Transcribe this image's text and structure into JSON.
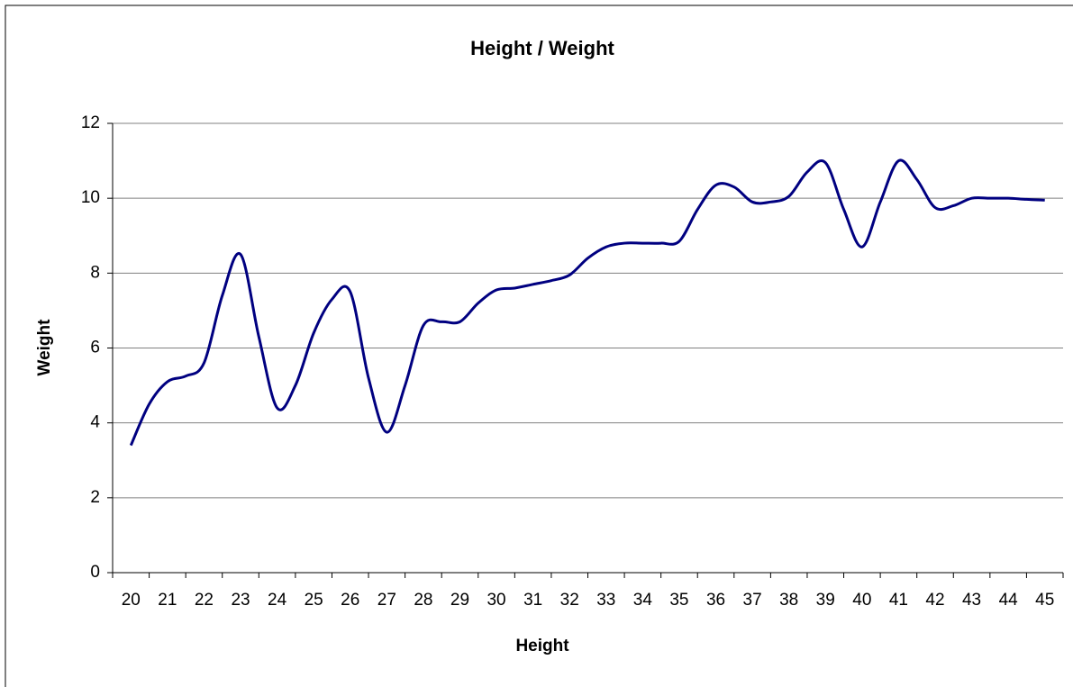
{
  "chart_data": {
    "type": "line",
    "title": "Height / Weight",
    "x_label": "Height",
    "y_label": "Weight",
    "categories": [
      "20",
      null,
      "21",
      null,
      "22",
      null,
      "23",
      null,
      "24",
      null,
      "25",
      null,
      "26",
      null,
      "27",
      null,
      "28",
      null,
      "29",
      null,
      "30",
      null,
      "31",
      null,
      "32",
      null,
      "33",
      null,
      "34",
      null,
      "35",
      null,
      "36",
      null,
      "37",
      null,
      "38",
      null,
      "39",
      null,
      "40",
      null,
      "41",
      null,
      "42",
      null,
      "43",
      null,
      "44",
      null,
      "45"
    ],
    "series": [
      {
        "name": "Weight",
        "color": "#000080",
        "values": [
          3.4,
          4.5,
          5.1,
          5.25,
          5.6,
          7.4,
          8.5,
          6.3,
          4.4,
          5.0,
          6.4,
          7.3,
          7.5,
          5.2,
          3.75,
          5.0,
          6.6,
          6.7,
          6.7,
          7.2,
          7.55,
          7.6,
          7.7,
          7.8,
          7.95,
          8.4,
          8.7,
          8.8,
          8.8,
          8.8,
          8.85,
          9.7,
          10.35,
          10.3,
          9.9,
          9.9,
          10.05,
          10.7,
          10.95,
          9.7,
          8.7,
          9.9,
          11.0,
          10.5,
          9.75,
          9.8,
          10.0,
          10.0,
          10.0,
          9.97,
          9.95
        ]
      }
    ],
    "ylim": [
      0,
      12
    ],
    "yticks": [
      0,
      2,
      4,
      6,
      8,
      10,
      12
    ],
    "grid": true
  }
}
